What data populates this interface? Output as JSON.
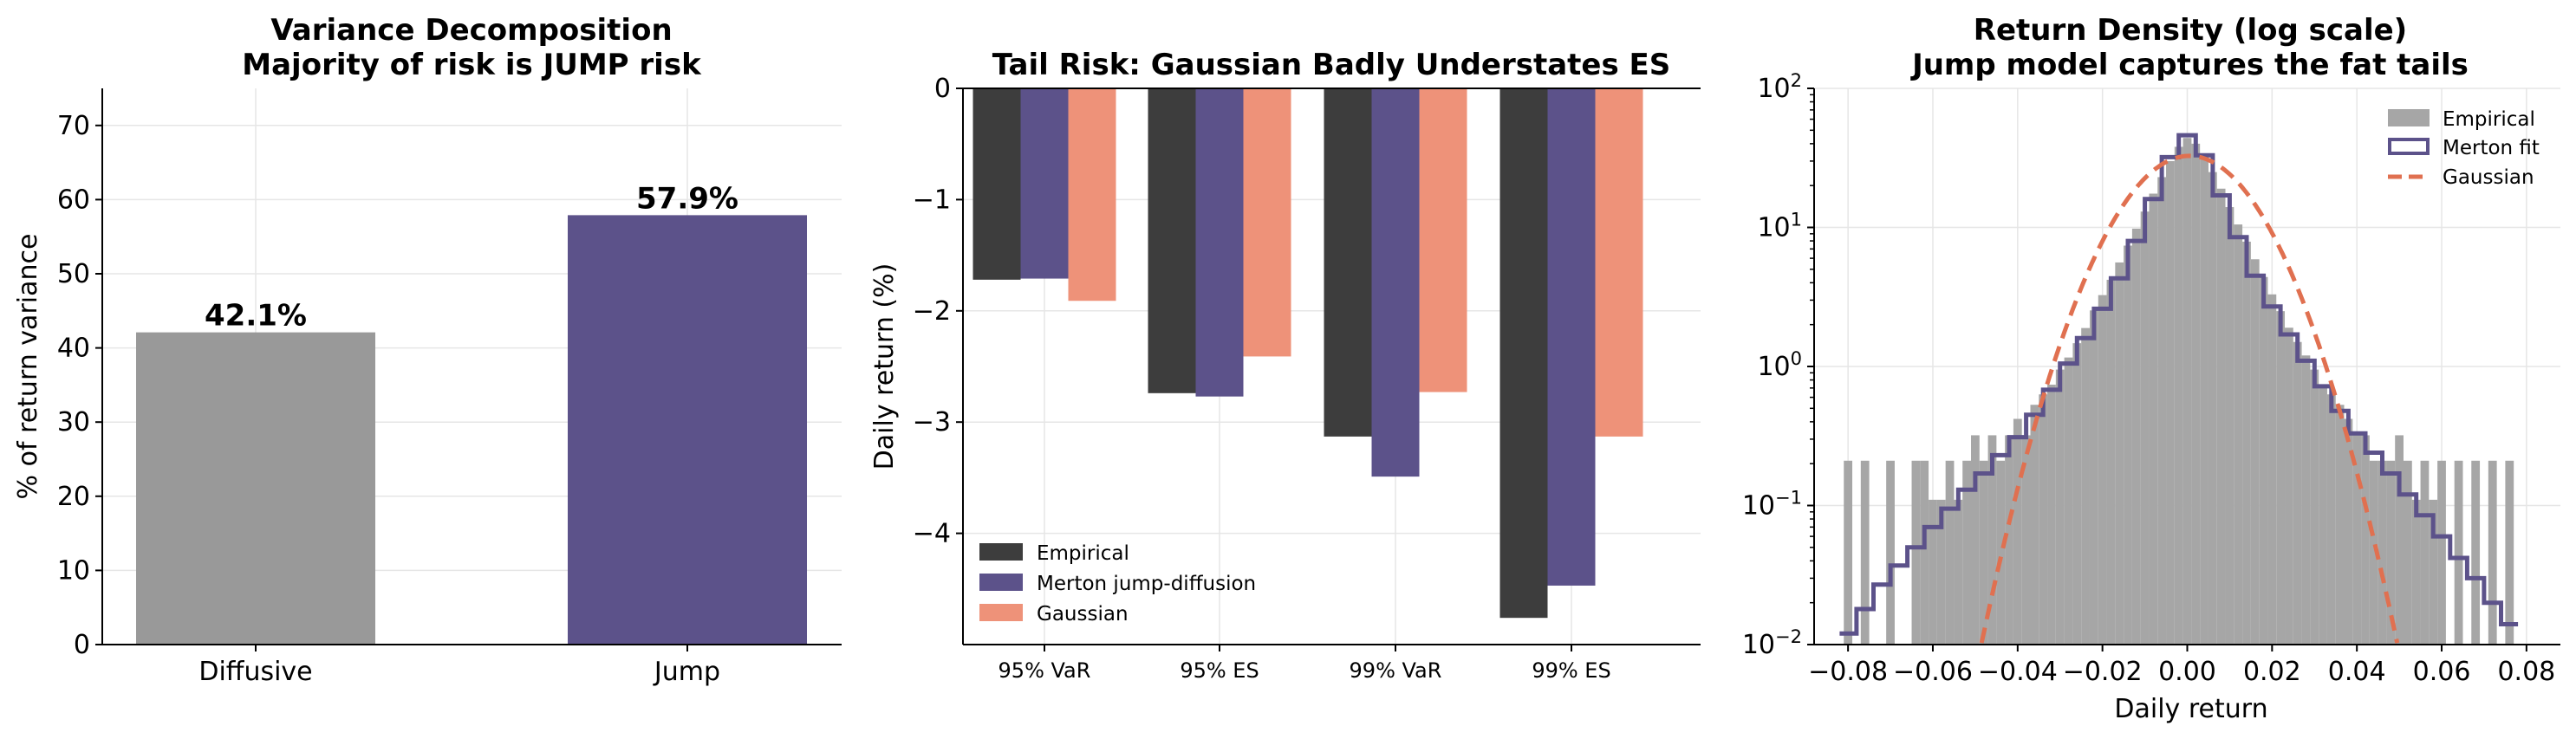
{
  "colors": {
    "diffusive": "#999999",
    "jump": "#5c528a",
    "empirical": "#3d3d3d",
    "merton": "#5c528a",
    "gaussian": "#ee9279",
    "hist_fill": "#a6a6a6",
    "gauss_line": "#e07050"
  },
  "chart_data": [
    {
      "type": "bar",
      "title": "Variance Decomposition",
      "subtitle": "Majority of risk is JUMP risk",
      "categories": [
        "Diffusive",
        "Jump"
      ],
      "values": [
        42.1,
        57.9
      ],
      "value_labels": [
        "42.1%",
        "57.9%"
      ],
      "ylabel": "% of return variance",
      "xlabel": "",
      "ylim": [
        0,
        75
      ],
      "yticks": [
        0,
        10,
        20,
        30,
        40,
        50,
        60,
        70
      ],
      "grid": true
    },
    {
      "type": "bar",
      "title": "Tail Risk: Gaussian Badly Understates ES",
      "categories": [
        "95% VaR",
        "95% ES",
        "99% VaR",
        "99% ES"
      ],
      "series": [
        {
          "name": "Empirical",
          "values": [
            -1.72,
            -2.74,
            -3.13,
            -4.76
          ]
        },
        {
          "name": "Merton jump-diffusion",
          "values": [
            -1.71,
            -2.77,
            -3.49,
            -4.47
          ]
        },
        {
          "name": "Gaussian",
          "values": [
            -1.91,
            -2.41,
            -2.73,
            -3.13
          ]
        }
      ],
      "ylabel": "Daily return (%)",
      "xlabel": "",
      "ylim": [
        -5.0,
        0
      ],
      "yticks": [
        0,
        -1,
        -2,
        -3,
        -4
      ],
      "legend_position": "bottom-left",
      "grid": true
    },
    {
      "type": "area",
      "title": "Return Density (log scale)",
      "subtitle": "Jump model captures the fat tails",
      "xlabel": "Daily return",
      "ylabel": "",
      "xlim": [
        -0.088,
        0.088
      ],
      "ylim": [
        0.01,
        100
      ],
      "yscale": "log",
      "xticks": [
        -0.08,
        -0.06,
        -0.04,
        -0.02,
        0.0,
        0.02,
        0.04,
        0.06,
        0.08
      ],
      "xtick_labels": [
        "−0.08",
        "−0.06",
        "−0.04",
        "−0.02",
        "0.00",
        "0.02",
        "0.04",
        "0.06",
        "0.08"
      ],
      "yticks": [
        0.01,
        0.1,
        1,
        10,
        100
      ],
      "ytick_labels": [
        {
          "base": "10",
          "exp": "−2"
        },
        {
          "base": "10",
          "exp": "−1"
        },
        {
          "base": "10",
          "exp": "0"
        },
        {
          "base": "10",
          "exp": "1"
        },
        {
          "base": "10",
          "exp": "2"
        }
      ],
      "legend": [
        "Empirical",
        "Merton fit",
        "Gaussian"
      ],
      "legend_position": "top-right",
      "grid": true,
      "empirical_hist": {
        "bin_width": 0.002,
        "bins": [
          [
            -0.08,
            0.21
          ],
          [
            -0.076,
            0.21
          ],
          [
            -0.07,
            0.21
          ],
          [
            -0.064,
            0.21
          ],
          [
            -0.062,
            0.21
          ],
          [
            -0.06,
            0.11
          ],
          [
            -0.058,
            0.11
          ],
          [
            -0.056,
            0.21
          ],
          [
            -0.054,
            0.11
          ],
          [
            -0.052,
            0.21
          ],
          [
            -0.05,
            0.32
          ],
          [
            -0.048,
            0.21
          ],
          [
            -0.046,
            0.32
          ],
          [
            -0.044,
            0.21
          ],
          [
            -0.042,
            0.32
          ],
          [
            -0.04,
            0.42
          ],
          [
            -0.038,
            0.32
          ],
          [
            -0.036,
            0.53
          ],
          [
            -0.034,
            0.63
          ],
          [
            -0.032,
            0.74
          ],
          [
            -0.03,
            0.95
          ],
          [
            -0.028,
            1.16
          ],
          [
            -0.026,
            1.47
          ],
          [
            -0.024,
            1.89
          ],
          [
            -0.022,
            2.53
          ],
          [
            -0.02,
            3.26
          ],
          [
            -0.018,
            4.2
          ],
          [
            -0.016,
            5.6
          ],
          [
            -0.014,
            7.4
          ],
          [
            -0.012,
            9.8
          ],
          [
            -0.01,
            13.0
          ],
          [
            -0.008,
            17.5
          ],
          [
            -0.006,
            23.0
          ],
          [
            -0.004,
            30.0
          ],
          [
            -0.002,
            38.0
          ],
          [
            0.0,
            44.0
          ],
          [
            0.002,
            40.0
          ],
          [
            0.004,
            33.0
          ],
          [
            0.006,
            25.0
          ],
          [
            0.008,
            19.0
          ],
          [
            0.01,
            14.0
          ],
          [
            0.012,
            10.5
          ],
          [
            0.014,
            7.9
          ],
          [
            0.016,
            5.9
          ],
          [
            0.018,
            4.4
          ],
          [
            0.02,
            3.3
          ],
          [
            0.022,
            2.5
          ],
          [
            0.024,
            1.9
          ],
          [
            0.026,
            1.5
          ],
          [
            0.028,
            1.2
          ],
          [
            0.03,
            0.95
          ],
          [
            0.032,
            0.74
          ],
          [
            0.034,
            0.63
          ],
          [
            0.036,
            0.53
          ],
          [
            0.038,
            0.42
          ],
          [
            0.04,
            0.32
          ],
          [
            0.042,
            0.32
          ],
          [
            0.044,
            0.21
          ],
          [
            0.046,
            0.21
          ],
          [
            0.048,
            0.21
          ],
          [
            0.05,
            0.32
          ],
          [
            0.052,
            0.21
          ],
          [
            0.054,
            0.11
          ],
          [
            0.056,
            0.21
          ],
          [
            0.058,
            0.11
          ],
          [
            0.06,
            0.21
          ],
          [
            0.064,
            0.21
          ],
          [
            0.068,
            0.21
          ],
          [
            0.072,
            0.21
          ],
          [
            0.076,
            0.21
          ]
        ]
      },
      "merton_fit": {
        "x": [
          -0.08,
          -0.076,
          -0.072,
          -0.068,
          -0.064,
          -0.06,
          -0.056,
          -0.052,
          -0.048,
          -0.044,
          -0.04,
          -0.036,
          -0.032,
          -0.028,
          -0.024,
          -0.02,
          -0.016,
          -0.012,
          -0.008,
          -0.004,
          0.0,
          0.004,
          0.008,
          0.012,
          0.016,
          0.02,
          0.024,
          0.028,
          0.032,
          0.036,
          0.04,
          0.044,
          0.048,
          0.052,
          0.056,
          0.06,
          0.064,
          0.068,
          0.072,
          0.076
        ],
        "y": [
          0.012,
          0.018,
          0.027,
          0.037,
          0.05,
          0.07,
          0.095,
          0.13,
          0.17,
          0.23,
          0.31,
          0.45,
          0.68,
          1.05,
          1.6,
          2.6,
          4.3,
          8.0,
          16.0,
          32.0,
          46.0,
          33.0,
          17.0,
          8.5,
          4.5,
          2.7,
          1.7,
          1.1,
          0.72,
          0.48,
          0.33,
          0.24,
          0.17,
          0.12,
          0.085,
          0.06,
          0.042,
          0.03,
          0.02,
          0.014
        ]
      },
      "gaussian_fit": {
        "mean": 0.0005,
        "sd": 0.0122
      }
    }
  ]
}
